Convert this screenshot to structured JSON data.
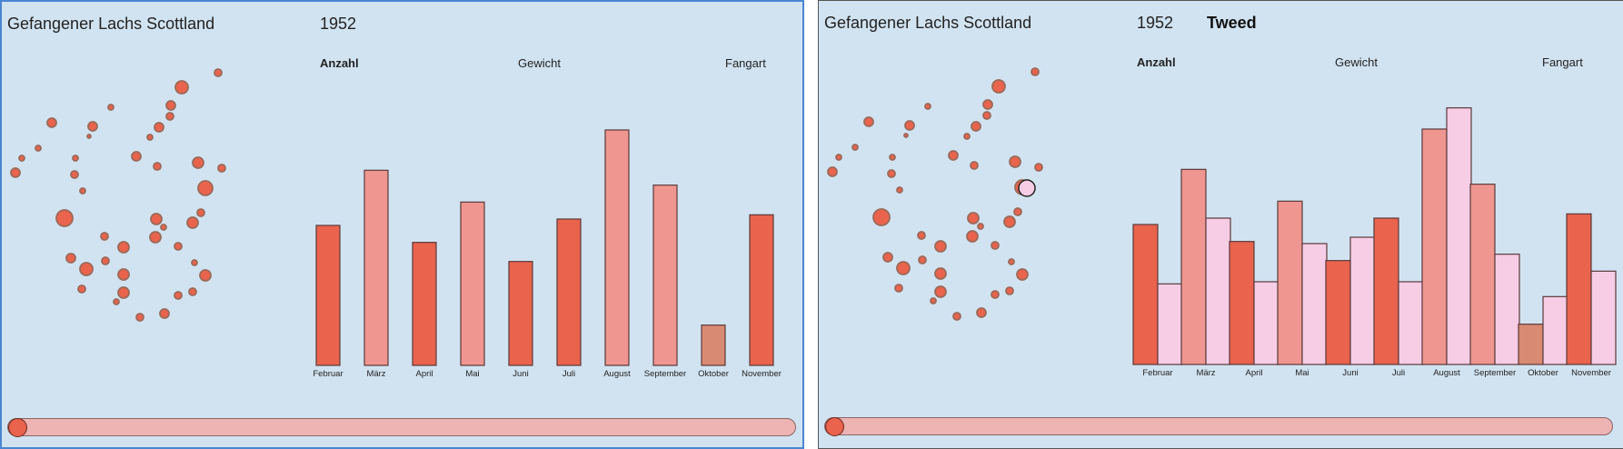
{
  "title": "Gefangener Lachs Scottland",
  "year": "1952",
  "selected_river": "Tweed",
  "metric_tabs": [
    "Anzahl",
    "Gewicht",
    "Fangart"
  ],
  "active_metric": "Anzahl",
  "slider": {
    "value": 0
  },
  "colors": {
    "panel_bg": "#d1e3f1",
    "bar_dark": "#e9634d",
    "bar_light": "#ef9690",
    "bar_brown": "#d98a72",
    "bar_selected": "#f7cde6",
    "slider_track": "#eeb3b3"
  },
  "chart_data": [
    {
      "type": "bar",
      "categories": [
        "Februar",
        "März",
        "April",
        "Mai",
        "Juni",
        "Juli",
        "August",
        "September",
        "Oktober",
        "November"
      ],
      "series": [
        {
          "values": [
            66,
            92,
            58,
            77,
            49,
            69,
            111,
            85,
            19,
            71
          ]
        }
      ],
      "bar_colors": [
        "#e9634d",
        "#ef9690",
        "#e9634d",
        "#ef9690",
        "#e9634d",
        "#e9634d",
        "#ef9690",
        "#ef9690",
        "#d98a72",
        "#e9634d"
      ],
      "ylim": [
        0,
        120
      ]
    },
    {
      "type": "bar",
      "categories": [
        "Februar",
        "März",
        "April",
        "Mai",
        "Juni",
        "Juli",
        "August",
        "September",
        "Oktober",
        "November"
      ],
      "series": [
        {
          "values": [
            66,
            92,
            58,
            77,
            49,
            69,
            111,
            85,
            19,
            71
          ]
        },
        {
          "values": [
            38,
            69,
            39,
            57,
            60,
            39,
            121,
            52,
            32,
            44
          ]
        }
      ],
      "bar_colors": [
        "#e9634d",
        "#ef9690",
        "#e9634d",
        "#ef9690",
        "#e9634d",
        "#e9634d",
        "#ef9690",
        "#ef9690",
        "#d98a72",
        "#e9634d"
      ],
      "ylim": [
        0,
        120
      ]
    }
  ]
}
